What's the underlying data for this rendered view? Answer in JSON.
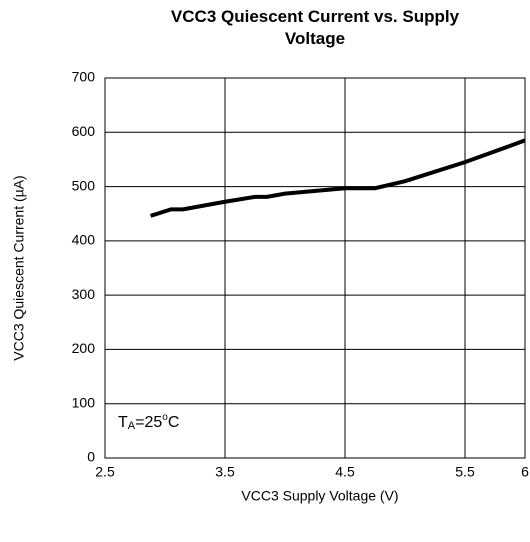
{
  "chart_data": {
    "type": "line",
    "title": "VCC3 Quiescent Current vs. Supply Voltage",
    "x_label": "VCC3 Supply Voltage (V)",
    "y_label": "VCC3 Quiescent Current (µA)",
    "annotation": [
      "T",
      "A",
      "=25",
      "o",
      "C"
    ],
    "x": [
      2.88,
      3.05,
      3.15,
      3.5,
      3.75,
      3.85,
      4.0,
      4.5,
      4.75,
      5.0,
      5.5,
      6.0
    ],
    "series": [
      {
        "color": "#000000",
        "values": [
          446,
          458,
          458,
          472,
          481,
          481,
          487,
          497,
          497,
          510,
          545,
          585
        ]
      }
    ],
    "xlim": [
      2.5,
      6
    ],
    "xticks": [
      2.5,
      3.5,
      4.5,
      5.5,
      6
    ],
    "ylim": [
      0,
      700
    ],
    "yticks": [
      0,
      100,
      200,
      300,
      400,
      500,
      600,
      700
    ],
    "grid": true
  }
}
